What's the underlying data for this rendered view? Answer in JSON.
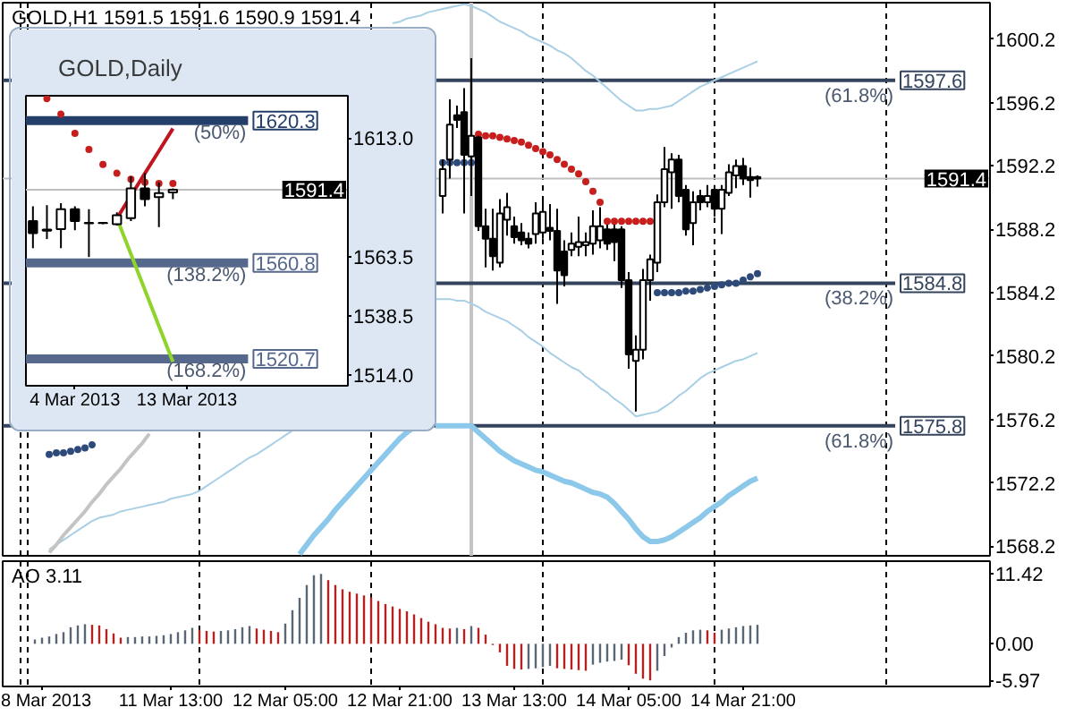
{
  "chart_data": [
    {
      "type": "candlestick",
      "title": "GOLD,H1 1591.5 1591.6 1590.9 1591.4",
      "tick_labels": "y",
      "categories": [
        null,
        null,
        null,
        null,
        null,
        null,
        null,
        null,
        null,
        null,
        null,
        null,
        null,
        null,
        null,
        null,
        null,
        null,
        null,
        null,
        null,
        null,
        null,
        null,
        null,
        null,
        null,
        null,
        null,
        null,
        null,
        null,
        null,
        null,
        null,
        null,
        null,
        null,
        null,
        null,
        null,
        null,
        null,
        null,
        null,
        null,
        null,
        null,
        null,
        null,
        null,
        null,
        null,
        null,
        null,
        null,
        null,
        null,
        null,
        null,
        null,
        null,
        null,
        null,
        null,
        null,
        null,
        null,
        null,
        null,
        null,
        null,
        null,
        null,
        null,
        null,
        null,
        null,
        null,
        null,
        null,
        null,
        null,
        null,
        null,
        null,
        null,
        null,
        null,
        null,
        null,
        null,
        null,
        null,
        null,
        null,
        null,
        null,
        null,
        null,
        null,
        null,
        null,
        null,
        null,
        null,
        null,
        null,
        null,
        null,
        null,
        null,
        null,
        null,
        null,
        null,
        null,
        null,
        null,
        null,
        null,
        null,
        null,
        null,
        null,
        null,
        null,
        null,
        null,
        null,
        null,
        null,
        null,
        null,
        null,
        null,
        null,
        null
      ],
      "ohlc": [
        null,
        null,
        null,
        null,
        null,
        null,
        null,
        null,
        null,
        null,
        null,
        null,
        null,
        null,
        null,
        null,
        null,
        null,
        null,
        null,
        null,
        null,
        null,
        null,
        null,
        null,
        null,
        null,
        null,
        null,
        null,
        null,
        null,
        null,
        null,
        null,
        null,
        null,
        null,
        null,
        null,
        null,
        null,
        null,
        null,
        null,
        null,
        null,
        null,
        null,
        null,
        null,
        null,
        null,
        null,
        null,
        null,
        null,
        null,
        null,
        null,
        [
          1590.3,
          1592.6,
          1589.2,
          1592.0
        ],
        [
          1592.6,
          1596.4,
          1591.4,
          1594.8
        ],
        [
          1595.4,
          1596.0,
          1594.6,
          1595.1
        ],
        [
          1595.6,
          1597.1,
          1589.2,
          1592.9
        ],
        [
          1592.8,
          1599.0,
          1590.3,
          1594.1
        ],
        [
          1594.0,
          1594.1,
          1588.1,
          1588.4
        ],
        [
          1588.4,
          1589.5,
          1585.8,
          1587.6
        ],
        [
          1587.6,
          1589.5,
          1585.6,
          1586.5
        ],
        [
          1586.1,
          1590.1,
          1585.8,
          1589.2
        ],
        [
          1588.8,
          1590.5,
          1587.8,
          1589.6
        ],
        [
          1588.4,
          1589.0,
          1587.3,
          1587.7
        ],
        [
          1588.0,
          1588.6,
          1587.2,
          1587.5
        ],
        [
          1587.6,
          1588.0,
          1587.0,
          1587.3
        ],
        [
          1587.9,
          1589.9,
          1587.3,
          1589.2
        ],
        [
          1588.0,
          1590.3,
          1587.6,
          1589.3
        ],
        [
          1588.3,
          1589.8,
          1587.5,
          1588.1
        ],
        [
          1588.1,
          1589.5,
          1583.5,
          1585.6
        ],
        [
          1586.8,
          1587.5,
          1584.6,
          1585.3
        ],
        [
          1586.9,
          1588.0,
          1586.5,
          1587.3
        ],
        [
          1587.1,
          1589.0,
          1586.5,
          1587.4
        ],
        [
          1587.2,
          1588.0,
          1586.5,
          1587.4
        ],
        [
          1587.3,
          1589.4,
          1586.6,
          1588.4
        ],
        [
          1587.5,
          1589.6,
          1587.0,
          1588.4
        ],
        [
          1588.2,
          1588.5,
          1586.9,
          1587.3
        ],
        [
          1588.2,
          1588.5,
          1586.2,
          1587.4
        ],
        [
          1588.2,
          1588.4,
          1584.5,
          1585.0
        ],
        [
          1585.0,
          1585.5,
          1579.4,
          1580.3
        ],
        [
          1579.9,
          1581.5,
          1576.7,
          1580.6
        ],
        [
          1580.6,
          1585.7,
          1580.0,
          1585.0
        ],
        [
          1585.0,
          1586.6,
          1583.7,
          1586.3
        ],
        [
          1586.1,
          1590.4,
          1585.5,
          1589.9
        ],
        [
          1589.9,
          1593.4,
          1589.6,
          1592.0
        ],
        [
          1591.8,
          1593.0,
          1589.5,
          1592.6
        ],
        [
          1592.6,
          1592.9,
          1589.9,
          1590.3
        ],
        [
          1590.7,
          1591.0,
          1587.8,
          1588.2
        ],
        [
          1588.6,
          1590.6,
          1587.2,
          1589.9
        ],
        [
          1590.3,
          1590.7,
          1589.4,
          1589.9
        ],
        [
          1589.9,
          1591.0,
          1589.6,
          1590.3
        ],
        [
          1590.7,
          1591.0,
          1589.0,
          1589.5
        ],
        [
          1589.5,
          1591.0,
          1587.9,
          1590.7
        ],
        [
          1590.5,
          1592.3,
          1590.3,
          1591.8
        ],
        [
          1591.6,
          1592.6,
          1590.8,
          1592.2
        ],
        [
          1592.2,
          1592.7,
          1591.0,
          1591.4
        ],
        [
          1591.5,
          1592.1,
          1590.2,
          1591.3
        ],
        [
          1591.5,
          1591.6,
          1590.9,
          1591.4
        ],
        null,
        null,
        null,
        null,
        null,
        null,
        null,
        null,
        null,
        null,
        null,
        null,
        null,
        null,
        null,
        null,
        null,
        null,
        null,
        null,
        null,
        null,
        null,
        null,
        null,
        null,
        null,
        null,
        null,
        null,
        null,
        null
      ],
      "colors": [
        null,
        null,
        null,
        null,
        null,
        null,
        null,
        null,
        null,
        null,
        null,
        null,
        null,
        null,
        null,
        null,
        null,
        null,
        null,
        null,
        null,
        null,
        null,
        null,
        null,
        null,
        null,
        null,
        null,
        null,
        null,
        null,
        null,
        null,
        null,
        null,
        null,
        null,
        null,
        null,
        null,
        null,
        null,
        null,
        null,
        null,
        null,
        null,
        null,
        null,
        null,
        null,
        null,
        null,
        null,
        null,
        null,
        null,
        null,
        null,
        null,
        "#ffffff",
        "#ffffff",
        "#000000",
        "#000000",
        "#ffffff",
        "#000000",
        "#000000",
        "#000000",
        "#ffffff",
        "#ffffff",
        "#000000",
        "#000000",
        "#000000",
        "#ffffff",
        "#ffffff",
        "#000000",
        "#000000",
        "#000000",
        "#ffffff",
        "#ffffff",
        "#ffffff",
        "#ffffff",
        "#ffffff",
        "#000000",
        "#000000",
        "#000000",
        "#000000",
        "#ffffff",
        "#ffffff",
        "#ffffff",
        "#ffffff",
        "#ffffff",
        "#ffffff",
        "#000000",
        "#000000",
        "#ffffff",
        "#000000",
        "#ffffff",
        "#000000",
        "#ffffff",
        "#ffffff",
        "#ffffff",
        "#000000",
        "#000000",
        "#000000",
        null,
        null,
        null,
        null,
        null,
        null,
        null,
        null,
        null,
        null,
        null,
        null,
        null,
        null,
        null,
        null,
        null,
        null,
        null,
        null,
        null,
        null,
        null,
        null,
        null,
        null,
        null,
        null,
        null,
        null,
        null,
        null
      ],
      "series": [
        {
          "type": "line",
          "color": "#a9cfe5",
          "values": [
            null,
            null,
            null,
            null,
            null,
            null,
            null,
            null,
            null,
            null,
            null,
            null,
            null,
            null,
            null,
            null,
            null,
            null,
            null,
            null,
            null,
            null,
            null,
            null,
            null,
            null,
            null,
            null,
            null,
            null,
            null,
            null,
            null,
            null,
            null,
            null,
            null,
            null,
            null,
            null,
            null,
            null,
            null,
            null,
            null,
            null,
            null,
            null,
            null,
            null,
            null,
            null,
            null,
            null,
            1601.2,
            1601.3,
            1601.5,
            1601.6,
            1601.7,
            1601.9,
            1602.0,
            1602.1,
            1602.2,
            1602.3,
            1602.4,
            1602.3,
            1602.1,
            1601.9,
            1601.6,
            1601.3,
            1601.1,
            1600.9,
            1600.7,
            1600.4,
            1600.2,
            1600.0,
            1599.8,
            1599.5,
            1599.3,
            1599.0,
            1598.6,
            1598.2,
            1597.9,
            1597.5,
            1597.1,
            1596.7,
            1596.3,
            1596.0,
            1595.7,
            1595.7,
            1595.8,
            1595.8,
            1595.9,
            1596.0,
            1596.3,
            1596.6,
            1596.9,
            1597.2,
            1597.4,
            1597.6,
            1597.8,
            1598.0,
            1598.2,
            1598.4,
            1598.6,
            1598.8,
            null,
            null,
            null,
            null,
            null,
            null,
            null,
            null,
            null,
            null,
            null,
            null,
            null,
            null,
            null,
            null,
            null,
            null,
            null,
            null,
            null,
            null,
            null,
            null,
            null,
            null,
            null,
            null,
            null,
            null,
            null,
            null
          ]
        },
        {
          "type": "line",
          "color": "#a9cfe5",
          "values": [
            null,
            null,
            null,
            null,
            null,
            null,
            1568.0,
            1568.3,
            1568.6,
            1568.9,
            1569.2,
            1569.5,
            1569.8,
            1570.0,
            1570.1,
            1570.2,
            1570.4,
            1570.5,
            1570.6,
            1570.7,
            1570.8,
            1570.9,
            1571.0,
            1571.2,
            1571.3,
            1571.4,
            1571.5,
            1571.7,
            1572.0,
            1572.3,
            1572.6,
            1572.9,
            1573.2,
            1573.5,
            1573.8,
            1574.0,
            1574.3,
            1574.6,
            1574.9,
            1575.2,
            1575.5,
            null,
            null,
            null,
            null,
            null,
            null,
            null,
            null,
            null,
            null,
            null,
            null,
            null,
            null,
            null,
            null,
            null,
            null,
            null,
            1583.8,
            1583.8,
            1583.8,
            1583.7,
            1583.7,
            1583.5,
            1583.3,
            1583.0,
            1582.8,
            1582.6,
            1582.4,
            1582.1,
            1581.8,
            1581.4,
            1581.1,
            1580.8,
            1580.4,
            1580.1,
            1579.8,
            1579.5,
            1579.3,
            1578.9,
            1578.6,
            1578.2,
            1577.9,
            1577.5,
            1577.2,
            1576.8,
            1576.4,
            1576.5,
            1576.6,
            1576.7,
            1577.0,
            1577.3,
            1577.7,
            1578.0,
            1578.4,
            1578.8,
            1579.1,
            1579.3,
            1579.5,
            1579.7,
            1579.9,
            1580.0,
            1580.2,
            1580.4,
            null,
            null,
            null,
            null,
            null,
            null,
            null,
            null,
            null,
            null,
            null,
            null,
            null,
            null,
            null,
            null,
            null,
            null,
            null,
            null,
            null,
            null,
            null,
            null,
            null,
            null,
            null,
            null,
            null,
            null,
            null,
            null
          ]
        },
        {
          "type": "line",
          "color": "#8cc8ea",
          "values": [
            null,
            null,
            null,
            null,
            null,
            null,
            null,
            null,
            null,
            null,
            null,
            null,
            null,
            null,
            null,
            null,
            null,
            null,
            null,
            null,
            null,
            null,
            null,
            null,
            null,
            null,
            null,
            null,
            null,
            null,
            null,
            null,
            null,
            null,
            null,
            null,
            null,
            null,
            null,
            null,
            null,
            1567.7,
            1568.3,
            1568.9,
            1569.4,
            1569.9,
            1570.5,
            1571.0,
            1571.5,
            1572.0,
            1572.5,
            1573.0,
            1573.5,
            1574.0,
            1574.5,
            1575.0,
            1575.4,
            1575.7,
            null,
            null,
            1575.8,
            1575.8,
            1575.8,
            1575.8,
            1575.8,
            1575.8,
            1575.4,
            1575.0,
            1574.6,
            1574.2,
            1573.9,
            1573.6,
            1573.4,
            1573.2,
            1573.0,
            1572.9,
            1572.7,
            1572.5,
            1572.3,
            1572.2,
            1572.0,
            1571.8,
            1571.6,
            1571.5,
            1571.3,
            1570.9,
            1570.4,
            1569.9,
            1569.3,
            1568.8,
            1568.5,
            1568.5,
            1568.6,
            1568.8,
            1569.1,
            1569.4,
            1569.7,
            1570.0,
            1570.4,
            1570.7,
            1571.0,
            1571.4,
            1571.7,
            1572.0,
            1572.3,
            1572.5,
            null,
            null,
            null,
            null,
            null,
            null,
            null,
            null,
            null,
            null,
            null,
            null,
            null,
            null,
            null,
            null,
            null,
            null,
            null,
            null,
            null,
            null,
            null,
            null,
            null,
            null,
            null,
            null,
            null,
            null,
            null,
            null
          ]
        },
        {
          "type": "line",
          "color": "#c4c4c4",
          "values": [
            null,
            null,
            null,
            null,
            null,
            null,
            1567.8,
            1568.3,
            1568.9,
            1569.4,
            1569.9,
            1570.4,
            1571.0,
            1571.5,
            1572.1,
            1572.6,
            1573.1,
            1573.7,
            1574.2,
            1574.7,
            1575.3,
            null,
            null,
            null,
            null,
            null,
            null,
            null,
            null,
            null,
            null,
            null,
            null,
            null,
            null,
            null,
            null,
            null,
            null,
            null,
            null,
            null,
            null,
            null,
            null,
            null,
            null,
            null,
            null,
            null,
            null,
            null,
            null,
            null,
            null,
            null,
            null,
            null,
            null,
            null,
            null,
            null,
            null,
            null,
            null,
            null,
            null,
            null,
            null,
            null,
            null,
            null,
            null,
            null,
            null,
            null,
            null,
            null,
            null,
            null,
            null,
            null,
            null,
            null,
            null,
            null,
            null,
            null,
            null,
            null,
            null,
            null,
            null,
            null,
            null,
            null,
            null,
            null,
            null,
            null,
            null,
            null,
            null,
            null,
            null,
            null,
            null,
            null,
            null,
            null,
            null,
            null,
            null,
            null,
            null,
            null,
            null,
            null,
            null,
            null,
            null,
            null,
            null,
            null,
            null,
            null,
            null,
            null,
            null,
            null,
            null,
            null,
            null,
            null,
            null,
            null,
            null,
            null
          ]
        },
        {
          "type": "scatter",
          "marker": "circle",
          "color": "#c81e1e",
          "values": [
            null,
            null,
            null,
            null,
            null,
            null,
            null,
            null,
            null,
            null,
            null,
            null,
            null,
            null,
            null,
            null,
            null,
            null,
            null,
            null,
            null,
            null,
            null,
            null,
            null,
            null,
            null,
            null,
            null,
            null,
            null,
            null,
            null,
            null,
            null,
            null,
            null,
            null,
            null,
            null,
            null,
            null,
            null,
            null,
            null,
            null,
            null,
            null,
            null,
            null,
            null,
            null,
            null,
            null,
            null,
            null,
            null,
            null,
            null,
            null,
            null,
            null,
            null,
            null,
            null,
            null,
            1594.2,
            1594.1,
            1594.1,
            1594.0,
            1593.9,
            1593.8,
            1593.7,
            1593.5,
            1593.3,
            1593.1,
            1592.9,
            1592.6,
            1592.3,
            1592.0,
            1591.7,
            1591.2,
            1590.6,
            1589.9,
            1588.7,
            1588.7,
            1588.7,
            1588.7,
            1588.7,
            1588.7,
            1588.7,
            null,
            null,
            null,
            null,
            null,
            null,
            null,
            null,
            null,
            null,
            null,
            null,
            null,
            null,
            null,
            null,
            null,
            null,
            null,
            null,
            null,
            null,
            null,
            null,
            null,
            null,
            null,
            null,
            null,
            null,
            null,
            null,
            null,
            null,
            null,
            null,
            null,
            null,
            null,
            null,
            null,
            null,
            null,
            null,
            null,
            null,
            null
          ]
        },
        {
          "type": "scatter",
          "marker": "circle",
          "color": "#2e4a7a",
          "values": [
            null,
            null,
            null,
            null,
            null,
            null,
            1574.0,
            1574.1,
            1574.1,
            1574.2,
            1574.3,
            1574.4,
            1574.6,
            null,
            null,
            null,
            null,
            null,
            null,
            null,
            null,
            null,
            null,
            null,
            null,
            null,
            null,
            null,
            null,
            null,
            null,
            null,
            null,
            null,
            null,
            null,
            null,
            null,
            null,
            null,
            null,
            null,
            null,
            null,
            null,
            null,
            null,
            null,
            null,
            null,
            null,
            null,
            null,
            null,
            null,
            null,
            null,
            null,
            null,
            null,
            null,
            1592.4,
            1592.4,
            1592.4,
            1592.4,
            1592.4,
            null,
            null,
            null,
            null,
            null,
            null,
            null,
            null,
            null,
            null,
            null,
            null,
            null,
            null,
            null,
            null,
            null,
            null,
            null,
            null,
            null,
            null,
            null,
            null,
            null,
            1584.2,
            1584.2,
            1584.2,
            1584.2,
            1584.3,
            1584.3,
            1584.4,
            1584.5,
            1584.6,
            1584.7,
            1584.8,
            1584.8,
            1585.0,
            1585.2,
            1585.4,
            null,
            null,
            null,
            null,
            null,
            null,
            null,
            null,
            null,
            null,
            null,
            null,
            null,
            null,
            null,
            null,
            null,
            null,
            null,
            null,
            null,
            null,
            null,
            null,
            null,
            null,
            null,
            null,
            null,
            null,
            null,
            null
          ]
        }
      ],
      "ylim": [
        1567.6,
        1602.5
      ],
      "yticks": [
        1600.2,
        1596.2,
        1592.2,
        1588.2,
        1584.2,
        1580.2,
        1576.2,
        1572.2,
        1568.2
      ],
      "ref_lines": [
        {
          "axis": "y",
          "value": 1591.4,
          "label": "1591.4",
          "color": "#c0c0c0"
        },
        {
          "axis": "y",
          "value": 1597.6,
          "label": "1597.6",
          "color": "#34445c"
        },
        {
          "axis": "y",
          "value": 1584.8,
          "label": "1584.8",
          "color": "#34445c"
        },
        {
          "axis": "y",
          "value": 1575.8,
          "label": "1575.8",
          "color": "#34445c"
        }
      ],
      "annotations": [
        {
          "text": "(61.8%)",
          "y": 1597.6
        },
        {
          "text": "(38.2%)",
          "y": 1584.8
        },
        {
          "text": "(61.8%)",
          "y": 1575.8
        }
      ]
    },
    {
      "type": "bar",
      "title": "AO 3.11",
      "categories": [
        null,
        null,
        null,
        null,
        null,
        "8 Mar 2013",
        null,
        null,
        null,
        null,
        null,
        null,
        null,
        null,
        null,
        null,
        null,
        null,
        null,
        null,
        null,
        null,
        null,
        "11 Mar 13:00",
        null,
        null,
        null,
        null,
        null,
        null,
        null,
        null,
        null,
        null,
        null,
        null,
        null,
        null,
        null,
        "12 Mar 05:00",
        null,
        null,
        null,
        null,
        null,
        null,
        null,
        null,
        null,
        null,
        null,
        null,
        null,
        null,
        null,
        "12 Mar 21:00",
        null,
        null,
        null,
        null,
        null,
        null,
        null,
        null,
        null,
        null,
        null,
        null,
        null,
        null,
        null,
        "13 Mar 13:00",
        null,
        null,
        null,
        null,
        null,
        null,
        null,
        null,
        null,
        null,
        null,
        null,
        null,
        null,
        null,
        "14 Mar 05:00",
        null,
        null,
        null,
        null,
        null,
        null,
        null,
        null,
        null,
        null,
        null,
        null,
        null,
        null,
        null,
        "14 Mar 21:00",
        null,
        null,
        null,
        null,
        null,
        null,
        null,
        null,
        null,
        null,
        null,
        null,
        null,
        null,
        null,
        null,
        null,
        null,
        null,
        null,
        null,
        null,
        null,
        null,
        null,
        null,
        null,
        null,
        null,
        null,
        null,
        null,
        null,
        null
      ],
      "values": [
        null,
        null,
        null,
        null,
        0.7,
        1.0,
        1.2,
        1.6,
        1.9,
        2.7,
        3.0,
        3.2,
        3.1,
        3.0,
        2.4,
        1.7,
        1.0,
        1.1,
        1.1,
        1.2,
        1.2,
        1.3,
        1.4,
        1.6,
        1.9,
        2.2,
        2.6,
        2.3,
        2.1,
        2.0,
        2.1,
        2.2,
        2.4,
        2.7,
        2.9,
        2.5,
        2.3,
        2.1,
        1.9,
        3.3,
        5.5,
        7.5,
        9.6,
        11.2,
        11.42,
        10.4,
        9.6,
        8.9,
        8.5,
        8.2,
        7.9,
        7.6,
        7.0,
        6.5,
        6.1,
        5.7,
        5.3,
        4.8,
        4.2,
        3.6,
        3.2,
        2.6,
        2.5,
        2.6,
        2.4,
        2.9,
        2.6,
        1.5,
        -0.2,
        -1.4,
        -3.6,
        -4.1,
        -4.2,
        -4.1,
        -4.0,
        -3.8,
        -3.6,
        -4.0,
        -4.1,
        -4.2,
        -4.3,
        -4.4,
        -3.4,
        -3.1,
        -2.9,
        -2.8,
        -2.6,
        -3.5,
        -4.9,
        -5.7,
        -5.97,
        -4.4,
        -2.0,
        -0.6,
        1.1,
        1.8,
        2.2,
        2.3,
        2.2,
        1.8,
        2.3,
        2.5,
        2.7,
        2.9,
        3.0,
        3.11,
        null,
        null,
        null,
        null,
        null,
        null,
        null,
        null,
        null,
        null,
        null,
        null,
        null,
        null,
        null,
        null,
        null,
        null,
        null,
        null,
        null,
        null,
        null,
        null,
        null,
        null,
        null,
        null,
        null,
        null,
        null,
        null
      ],
      "colors": [
        null,
        null,
        null,
        null,
        "#5b6675",
        "#5b6675",
        "#5b6675",
        "#5b6675",
        "#5b6675",
        "#5b6675",
        "#5b6675",
        "#5b6675",
        "#b22222",
        "#b22222",
        "#b22222",
        "#b22222",
        "#b22222",
        "#5b6675",
        "#5b6675",
        "#5b6675",
        "#5b6675",
        "#5b6675",
        "#5b6675",
        "#5b6675",
        "#5b6675",
        "#5b6675",
        "#5b6675",
        "#b22222",
        "#b22222",
        "#b22222",
        "#5b6675",
        "#5b6675",
        "#5b6675",
        "#5b6675",
        "#5b6675",
        "#b22222",
        "#b22222",
        "#b22222",
        "#b22222",
        "#5b6675",
        "#5b6675",
        "#5b6675",
        "#5b6675",
        "#5b6675",
        "#5b6675",
        "#b22222",
        "#b22222",
        "#b22222",
        "#b22222",
        "#b22222",
        "#b22222",
        "#b22222",
        "#b22222",
        "#b22222",
        "#b22222",
        "#b22222",
        "#b22222",
        "#b22222",
        "#b22222",
        "#b22222",
        "#b22222",
        "#b22222",
        "#b22222",
        "#5b6675",
        "#b22222",
        "#5b6675",
        "#b22222",
        "#b22222",
        "#b22222",
        "#b22222",
        "#b22222",
        "#b22222",
        "#b22222",
        "#5b6675",
        "#5b6675",
        "#5b6675",
        "#5b6675",
        "#b22222",
        "#b22222",
        "#b22222",
        "#b22222",
        "#b22222",
        "#5b6675",
        "#5b6675",
        "#5b6675",
        "#5b6675",
        "#5b6675",
        "#b22222",
        "#b22222",
        "#b22222",
        "#b22222",
        "#5b6675",
        "#5b6675",
        "#5b6675",
        "#5b6675",
        "#5b6675",
        "#5b6675",
        "#5b6675",
        "#b22222",
        "#b22222",
        "#5b6675",
        "#5b6675",
        "#5b6675",
        "#5b6675",
        "#5b6675",
        "#5b6675",
        null,
        null,
        null,
        null,
        null,
        null,
        null,
        null,
        null,
        null,
        null,
        null,
        null,
        null,
        null,
        null,
        null,
        null,
        null,
        null,
        null,
        null,
        null,
        null,
        null,
        null,
        null,
        null,
        null,
        null,
        null,
        null
      ],
      "ylim": [
        -6.97,
        13.5
      ],
      "yticks": [
        11.42,
        {
          "value": 0,
          "label": "0.00"
        },
        -5.97
      ]
    },
    {
      "type": "candlestick",
      "title": "GOLD,Daily",
      "categories": [
        null,
        null,
        null,
        "4 Mar 2013",
        null,
        null,
        null,
        null,
        null,
        null,
        null,
        "13 Mar 2013",
        null,
        null,
        null,
        null,
        null,
        null,
        null,
        null,
        null,
        null,
        null
      ],
      "ohlc": [
        [
          1578.3,
          1584.5,
          1567.0,
          1573.3
        ],
        [
          1574.8,
          1585.0,
          1570.8,
          1574.3
        ],
        [
          1575.0,
          1585.8,
          1567.0,
          1583.3
        ],
        [
          1583.3,
          1584.5,
          1574.5,
          1578.3
        ],
        [
          1577.6,
          1583.3,
          1563.3,
          1577.4
        ],
        [
          1577.5,
          1578.0,
          1577.0,
          1577.6
        ],
        [
          1577.0,
          1582.0,
          1576.5,
          1580.8
        ],
        [
          1579.5,
          1597.0,
          1578.3,
          1592.0
        ],
        [
          1592.0,
          1598.3,
          1584.5,
          1587.5
        ],
        [
          1588.3,
          1594.5,
          1575.8,
          1590.0
        ],
        [
          1590.3,
          1592.0,
          1587.5,
          1591.4
        ],
        null,
        null,
        null,
        null,
        null,
        null,
        null,
        null,
        null,
        null,
        null,
        null
      ],
      "colors": [
        "#000000",
        "#000000",
        "#ffffff",
        "#000000",
        "#000000",
        "#ffffff",
        "#ffffff",
        "#ffffff",
        "#000000",
        "#ffffff",
        "#ffffff",
        null,
        null,
        null,
        null,
        null,
        null,
        null,
        null,
        null,
        null,
        null,
        null
      ],
      "series": [
        {
          "type": "scatter",
          "marker": "circle",
          "color": "#c81e1e",
          "values": [
            null,
            1629.5,
            1623.0,
            1615.0,
            1608.3,
            1602.0,
            1598.3,
            1595.8,
            1594.5,
            1594.0,
            1594.0,
            null,
            null,
            null,
            null,
            null,
            null,
            null,
            null,
            null,
            null,
            null,
            null
          ]
        },
        {
          "type": "line",
          "color": "#c0141e",
          "values": [
            null,
            null,
            null,
            null,
            null,
            null,
            1579.5,
            1588.9,
            1598.3,
            1607.6,
            1617.0,
            null,
            null,
            null,
            null,
            null,
            null,
            null,
            null,
            null,
            null,
            null,
            null
          ]
        },
        {
          "type": "line",
          "color": "#8fd42a",
          "values": [
            null,
            null,
            null,
            null,
            null,
            null,
            1579.5,
            1564.5,
            1549.5,
            1534.5,
            1519.5,
            null,
            null,
            null,
            null,
            null,
            null,
            null,
            null,
            null,
            null,
            null,
            null
          ]
        }
      ],
      "ylim": [
        1509.5,
        1630.7
      ],
      "yticks": [
        {
          "value": 1613,
          "label": "1613.0"
        },
        1563.5,
        1538.5,
        {
          "value": 1514,
          "label": "1514.0"
        }
      ],
      "ref_lines": [
        {
          "axis": "y",
          "value": 1591.4,
          "label": "1591.4",
          "color": "#c0c0c0"
        },
        {
          "axis": "y",
          "value": 1620.3,
          "label": "1620.3",
          "color": "#24406a"
        },
        {
          "axis": "y",
          "value": 1560.8,
          "label": "1560.8",
          "color": "#56688c"
        },
        {
          "axis": "y",
          "value": 1520.7,
          "label": "1520.7",
          "color": "#56688c"
        }
      ],
      "annotations": [
        {
          "text": "(50%)",
          "y": 1620.3
        },
        {
          "text": "(138.2%)",
          "y": 1560.8
        },
        {
          "text": "(168.2%)",
          "y": 1520.7
        }
      ]
    }
  ]
}
